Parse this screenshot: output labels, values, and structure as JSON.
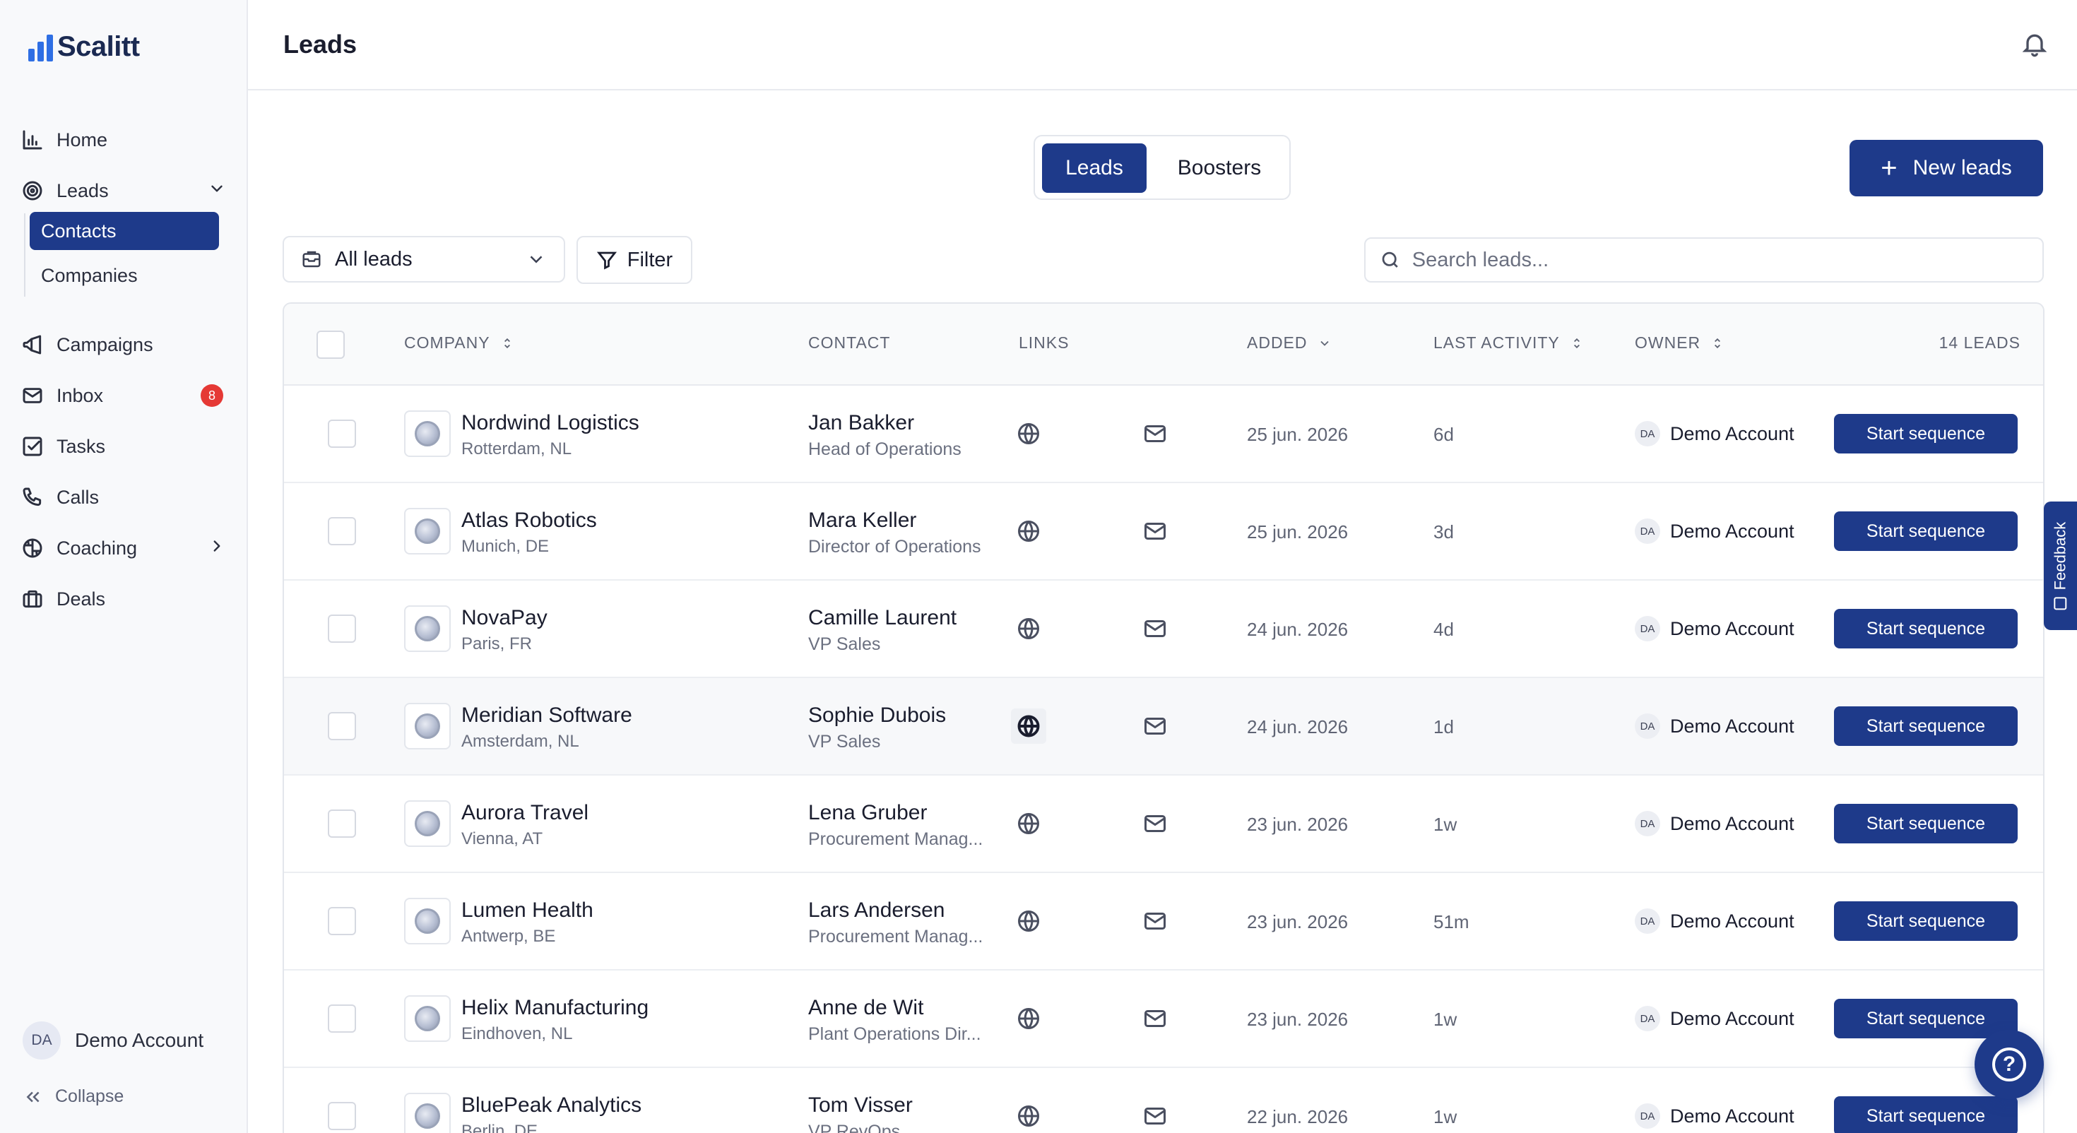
{
  "app": {
    "name": "Scalitt"
  },
  "sidebar": {
    "items": [
      {
        "label": "Home",
        "icon": "bar-chart-icon"
      },
      {
        "label": "Leads",
        "icon": "target-icon"
      },
      {
        "label": "Campaigns",
        "icon": "megaphone-icon"
      },
      {
        "label": "Inbox",
        "icon": "mail-icon",
        "badge": "8"
      },
      {
        "label": "Tasks",
        "icon": "checkbox-icon"
      },
      {
        "label": "Calls",
        "icon": "phone-icon"
      },
      {
        "label": "Coaching",
        "icon": "brain-icon"
      },
      {
        "label": "Deals",
        "icon": "briefcase-icon"
      }
    ],
    "leads_sub": [
      {
        "label": "Contacts",
        "active": true
      },
      {
        "label": "Companies",
        "active": false
      }
    ],
    "account": {
      "initials": "DA",
      "name": "Demo Account"
    },
    "collapse_label": "Collapse"
  },
  "header": {
    "title": "Leads"
  },
  "toggle": {
    "left": "Leads",
    "right": "Boosters",
    "active": "Leads"
  },
  "new_leads_label": "New leads",
  "filters": {
    "scope": "All leads",
    "filter_label": "Filter",
    "search_placeholder": "Search leads..."
  },
  "table": {
    "columns": {
      "company": "COMPANY",
      "contact": "CONTACT",
      "links": "LINKS",
      "added": "ADDED",
      "last_activity": "LAST ACTIVITY",
      "owner": "OWNER",
      "count": "14 LEADS"
    },
    "rows": [
      {
        "company": "Nordwind Logistics",
        "location": "Rotterdam, NL",
        "contact": "Jan Bakker",
        "role": "Head of Operations",
        "added": "25 jun. 2026",
        "last": "6d",
        "owner": "Demo Account",
        "owner_initials": "DA",
        "action": "Start sequence"
      },
      {
        "company": "Atlas Robotics",
        "location": "Munich, DE",
        "contact": "Mara Keller",
        "role": "Director of Operations",
        "added": "25 jun. 2026",
        "last": "3d",
        "owner": "Demo Account",
        "owner_initials": "DA",
        "action": "Start sequence"
      },
      {
        "company": "NovaPay",
        "location": "Paris, FR",
        "contact": "Camille Laurent",
        "role": "VP Sales",
        "added": "24 jun. 2026",
        "last": "4d",
        "owner": "Demo Account",
        "owner_initials": "DA",
        "action": "Start sequence"
      },
      {
        "company": "Meridian Software",
        "location": "Amsterdam, NL",
        "contact": "Sophie Dubois",
        "role": "VP Sales",
        "added": "24 jun. 2026",
        "last": "1d",
        "owner": "Demo Account",
        "owner_initials": "DA",
        "action": "Start sequence"
      },
      {
        "company": "Aurora Travel",
        "location": "Vienna, AT",
        "contact": "Lena Gruber",
        "role": "Procurement Manag...",
        "added": "23 jun. 2026",
        "last": "1w",
        "owner": "Demo Account",
        "owner_initials": "DA",
        "action": "Start sequence"
      },
      {
        "company": "Lumen Health",
        "location": "Antwerp, BE",
        "contact": "Lars Andersen",
        "role": "Procurement Manag...",
        "added": "23 jun. 2026",
        "last": "51m",
        "owner": "Demo Account",
        "owner_initials": "DA",
        "action": "Start sequence"
      },
      {
        "company": "Helix Manufacturing",
        "location": "Eindhoven, NL",
        "contact": "Anne de Wit",
        "role": "Plant Operations Dir...",
        "added": "23 jun. 2026",
        "last": "1w",
        "owner": "Demo Account",
        "owner_initials": "DA",
        "action": "Start sequence"
      },
      {
        "company": "BluePeak Analytics",
        "location": "Berlin, DE",
        "contact": "Tom Visser",
        "role": "VP RevOps",
        "added": "22 jun. 2026",
        "last": "1w",
        "owner": "Demo Account",
        "owner_initials": "DA",
        "action": "Start sequence"
      }
    ]
  },
  "feedback_label": "Feedback",
  "help_label": "?",
  "colors": {
    "primary": "#1e3a8a",
    "logo": "#2f6fe4",
    "badge": "#e53935"
  }
}
